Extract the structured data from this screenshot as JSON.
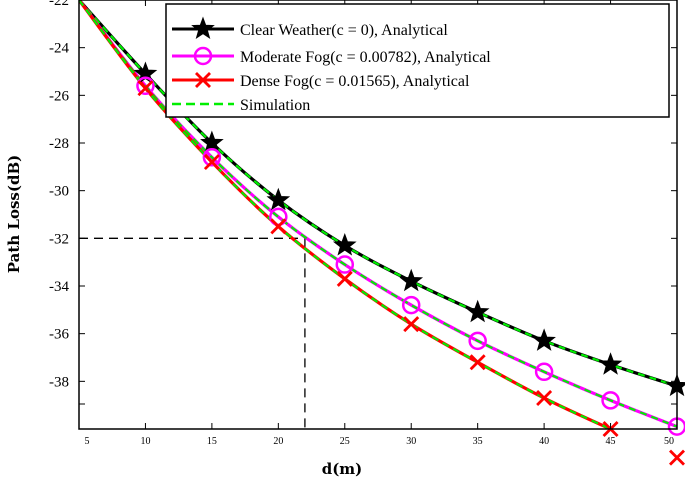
{
  "chart_data": {
    "type": "line",
    "xlabel": "d(m)",
    "ylabel": "Path Loss(dB)",
    "xlim": [
      5,
      50
    ],
    "ylim": [
      -40,
      -22
    ],
    "x_ticks": [
      5,
      10,
      15,
      20,
      25,
      30,
      35,
      40,
      45,
      50
    ],
    "y_ticks": [
      -22,
      -24,
      -26,
      -28,
      -30,
      -32,
      -34,
      -36,
      -38
    ],
    "grid": false,
    "legend_position": "top-right",
    "x": [
      5,
      10,
      15,
      20,
      25,
      30,
      35,
      40,
      45,
      50
    ],
    "series": [
      {
        "name": "Clear Weather(c = 0), Analytical",
        "color": "#000000",
        "marker": "star",
        "values": [
          -22.0,
          -25.1,
          -28.0,
          -30.4,
          -32.3,
          -33.8,
          -35.1,
          -36.3,
          -37.3,
          -38.2
        ]
      },
      {
        "name": "Moderate Fog(c = 0.00782), Analytical",
        "color": "#ff00ff",
        "marker": "circle",
        "values": [
          -22.0,
          -25.6,
          -28.6,
          -31.1,
          -33.1,
          -34.8,
          -36.3,
          -37.6,
          -38.8,
          -39.9
        ]
      },
      {
        "name": "Dense Fog(c = 0.01565), Analytical",
        "color": "#ff0000",
        "marker": "x",
        "values": [
          -22.0,
          -25.7,
          -28.8,
          -31.5,
          -33.7,
          -35.6,
          -37.2,
          -38.7,
          -40.0,
          -41.2
        ]
      },
      {
        "name": "Simulation",
        "color": "#00ee00",
        "marker": "none",
        "dashed": true
      }
    ],
    "reference_point": {
      "x": 22,
      "y": -32
    }
  }
}
